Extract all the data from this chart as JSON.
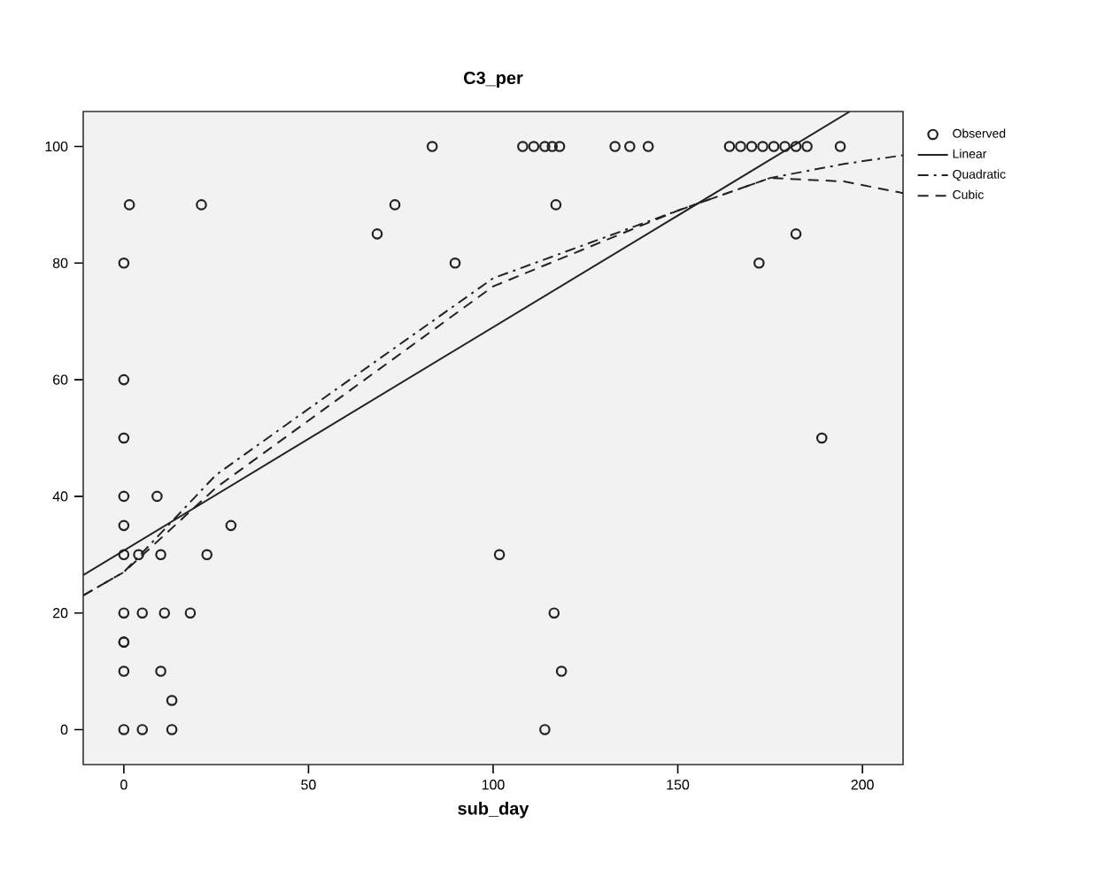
{
  "chart_data": {
    "type": "scatter",
    "title": "C3_per",
    "xlabel": "sub_day",
    "xlim": [
      -11,
      211
    ],
    "ylim": [
      -6,
      106
    ],
    "xticks": [
      0,
      50,
      100,
      150,
      200
    ],
    "yticks": [
      0,
      20,
      40,
      60,
      80,
      100
    ],
    "grid": false,
    "legend": "top right",
    "series": [
      {
        "name": "Observed",
        "marker": "circle",
        "color": "#222222",
        "x": [
          0,
          0,
          0,
          0,
          0,
          0,
          0,
          0,
          0,
          0,
          1.5,
          4,
          10,
          22.5,
          29,
          9,
          5,
          11,
          18,
          10,
          13,
          5,
          13,
          21,
          73.4,
          117,
          68.6,
          89.7,
          83.5,
          108,
          111,
          114,
          116,
          118,
          133,
          137,
          142,
          164,
          167,
          170,
          173,
          176,
          179,
          182,
          185,
          194,
          182,
          172,
          189,
          101.7,
          116.5,
          118.5,
          114,
          0
        ],
        "values": [
          80,
          60,
          50,
          40,
          35,
          30,
          20,
          15,
          10,
          0,
          90,
          30,
          30,
          30,
          35,
          40,
          20,
          20,
          20,
          10,
          5,
          0,
          0,
          90,
          90,
          90,
          85,
          80,
          100,
          100,
          100,
          100,
          100,
          100,
          100,
          100,
          100,
          100,
          100,
          100,
          100,
          100,
          100,
          100,
          100,
          100,
          85,
          80,
          50,
          30,
          20,
          10,
          0,
          15
        ]
      },
      {
        "name": "Linear",
        "type": "line",
        "line_style": "solid",
        "color": "#222222",
        "x": [
          -11,
          196.6
        ],
        "values": [
          26.5,
          106
        ]
      },
      {
        "name": "Quadratic",
        "type": "line",
        "line_style": "dashdot",
        "color": "#222222",
        "x": [
          -11,
          0,
          25,
          50,
          100,
          150,
          175,
          195,
          211
        ],
        "values": [
          23,
          27,
          43.7,
          55,
          77.4,
          89,
          94.6,
          97,
          98.5
        ]
      },
      {
        "name": "Cubic",
        "type": "line",
        "line_style": "dashed",
        "color": "#222222",
        "x": [
          -11,
          0,
          25,
          50,
          100,
          150,
          175,
          195,
          211
        ],
        "values": [
          23,
          27,
          41.5,
          53,
          76,
          89,
          94.6,
          94,
          92
        ]
      }
    ]
  }
}
